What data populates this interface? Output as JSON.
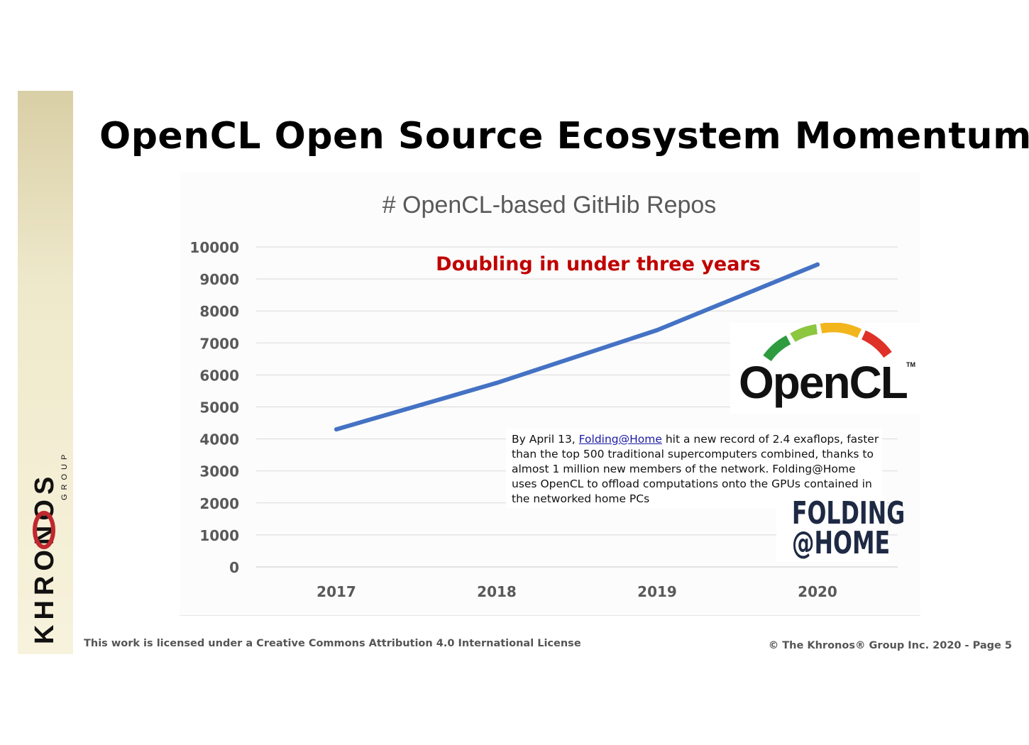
{
  "slide": {
    "title": "OpenCL Open Source Ecosystem Momentum",
    "footer_license": "This work is licensed under a Creative Commons Attribution 4.0 International License",
    "footer_copyright": "© The Khronos® Group Inc. 2020 - Page 5"
  },
  "logos": {
    "khronos_text": "KHRONOS",
    "khronos_sub": "GROUP",
    "opencl": "OpenCL",
    "opencl_tm": "TM",
    "fah_line1": "FOLDING",
    "fah_line2": "@HOME"
  },
  "note": {
    "prefix": "By April 13, ",
    "link": "Folding@Home",
    "rest": " hit a new record of 2.4 exaflops, faster than the top 500 traditional supercomputers combined, thanks to almost 1 million new members of the network. Folding@Home uses OpenCL to offload computations onto the GPUs contained in the networked home PCs"
  },
  "colors": {
    "line": "#4472c4",
    "annotation": "#c00000",
    "grid": "#d9d9d9",
    "tick": "#595959"
  },
  "chart_data": {
    "type": "line",
    "title": "# OpenCL-based GitHib Repos",
    "annotation": "Doubling in under three years",
    "categories": [
      "2017",
      "2018",
      "2019",
      "2020"
    ],
    "series": [
      {
        "values": [
          4300,
          5750,
          7400,
          9450
        ]
      }
    ],
    "ylim": [
      0,
      10000
    ],
    "yticks": [
      0,
      1000,
      2000,
      3000,
      4000,
      5000,
      6000,
      7000,
      8000,
      9000,
      10000
    ],
    "grid": true,
    "legend": "none"
  }
}
